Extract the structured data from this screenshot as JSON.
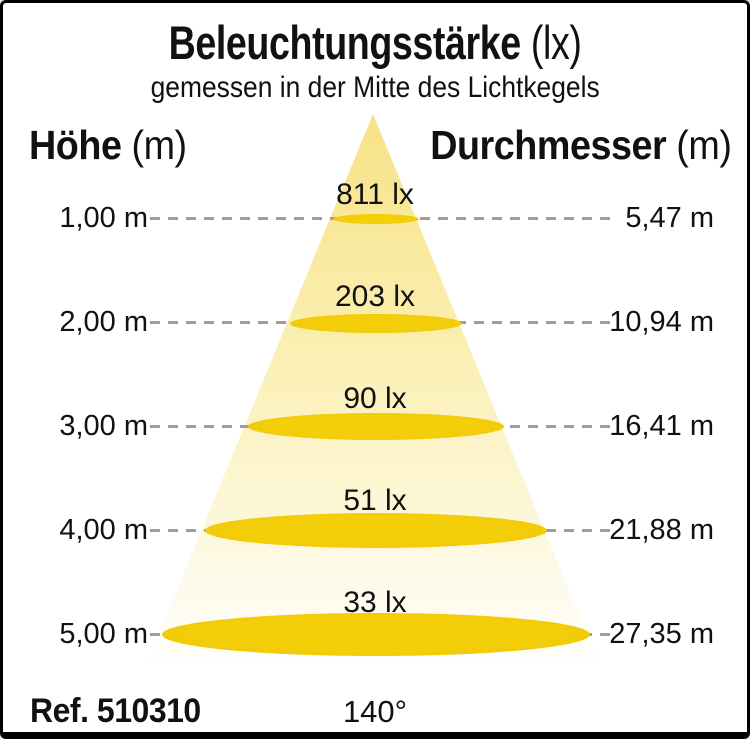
{
  "title": {
    "bold": "Beleuchtungsstärke",
    "unit": "(lx)"
  },
  "subtitle": "gemessen in der Mitte des Lichtkegels",
  "columns": {
    "left": {
      "bold": "Höhe",
      "unit": "(m)"
    },
    "right": {
      "bold": "Durchmesser",
      "unit": "(m)"
    }
  },
  "rows": [
    {
      "height": "1,00 m",
      "lux": "811 lx",
      "diameter": "5,47 m"
    },
    {
      "height": "2,00 m",
      "lux": "203 lx",
      "diameter": "10,94 m"
    },
    {
      "height": "3,00 m",
      "lux": "90 lx",
      "diameter": "16,41 m"
    },
    {
      "height": "4,00 m",
      "lux": "51 lx",
      "diameter": "21,88 m"
    },
    {
      "height": "5,00 m",
      "lux": "33 lx",
      "diameter": "27,35 m"
    }
  ],
  "footer": {
    "ref": "Ref. 510310",
    "beam_angle": "140°"
  },
  "colors": {
    "gold": "#F4CE08",
    "gold_edge": "#EDC60C",
    "cone_top": "#F7E287",
    "cone_mid": "#FBF0B4",
    "cone_bottom": "#FEFAE9",
    "dash": "#9E9E9E",
    "border": "#000000",
    "text": "#111111"
  },
  "chart_data": {
    "type": "table",
    "title": "Beleuchtungsstärke (lx)",
    "subtitle": "gemessen in der Mitte des Lichtkegels",
    "columns": [
      "Höhe (m)",
      "Beleuchtungsstärke (lx)",
      "Durchmesser (m)"
    ],
    "rows": [
      [
        1.0,
        811,
        5.47
      ],
      [
        2.0,
        203,
        10.94
      ],
      [
        3.0,
        90,
        16.41
      ],
      [
        4.0,
        51,
        21.88
      ],
      [
        5.0,
        33,
        27.35
      ]
    ],
    "beam_angle_deg": 140,
    "ref": "510310"
  }
}
